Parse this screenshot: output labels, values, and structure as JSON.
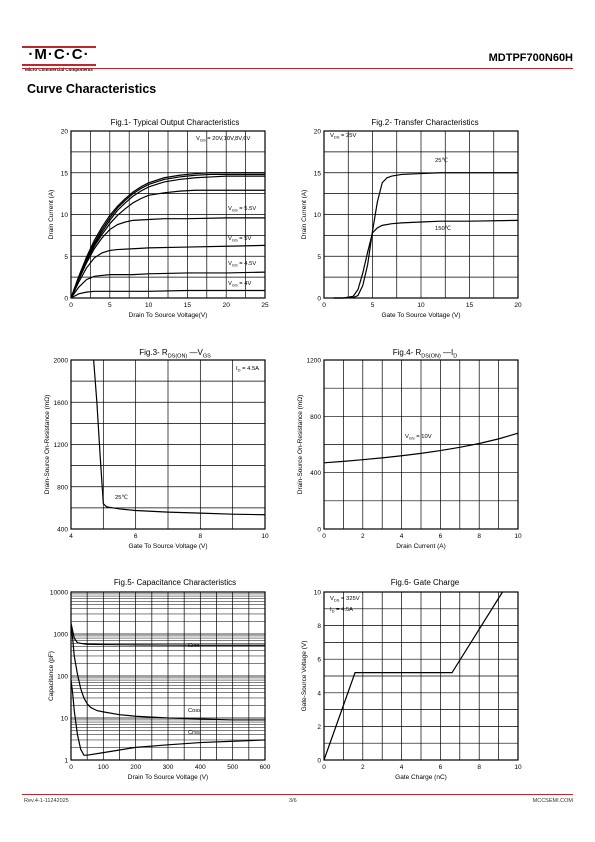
{
  "header": {
    "logo_text": "·M·C·C·",
    "logo_subtitle": "Micro Commercial Components",
    "part_number": "MDTPF700N60H",
    "brand_color": "#c0262e"
  },
  "section_title": "Curve Characteristics",
  "footer": {
    "revision": "Rev.4-1-11242025",
    "page": "3/6",
    "website": "MCCSEMI.COM"
  },
  "chart_data": [
    {
      "id": "fig1",
      "type": "line",
      "title": "Fig.1- Typical Output Characteristics",
      "xlabel": "Drain To Source Voltage(V)",
      "ylabel": "Drain Current (A)",
      "xlim": [
        0,
        25
      ],
      "ylim": [
        0,
        20
      ],
      "xticks": [
        "0",
        "5",
        "10",
        "15",
        "20",
        "25"
      ],
      "yticks": [
        "0",
        "5",
        "10",
        "15",
        "20"
      ],
      "grid": true,
      "annotations": [
        "VGS = 20V,10V,8V,6V",
        "VGS = 5.5V",
        "VGS = 5V",
        "VGS = 4.5V",
        "VGS = 4V"
      ],
      "series": [
        {
          "x": [
            0,
            1,
            2,
            3,
            4,
            5,
            6,
            7,
            8,
            9,
            10,
            12,
            14,
            16,
            18,
            20,
            22,
            25
          ],
          "y": [
            0,
            2.6,
            4.9,
            6.9,
            8.5,
            9.9,
            11.0,
            11.9,
            12.7,
            13.3,
            13.8,
            14.4,
            14.7,
            14.9,
            15.0,
            15.0,
            15.0,
            15.0
          ]
        },
        {
          "x": [
            0,
            1,
            2,
            3,
            4,
            5,
            6,
            7,
            8,
            9,
            10,
            12,
            14,
            16,
            18,
            20,
            22,
            25
          ],
          "y": [
            0,
            2.5,
            4.7,
            6.6,
            8.2,
            9.6,
            10.8,
            11.7,
            12.5,
            13.1,
            13.6,
            14.2,
            14.5,
            14.7,
            14.8,
            14.8,
            14.8,
            14.8
          ]
        },
        {
          "x": [
            0,
            1,
            2,
            3,
            4,
            5,
            6,
            7,
            8,
            9,
            10,
            12,
            14,
            16,
            18,
            20,
            22,
            25
          ],
          "y": [
            0,
            2.4,
            4.6,
            6.4,
            7.9,
            9.3,
            10.5,
            11.4,
            12.2,
            12.8,
            13.3,
            13.9,
            14.2,
            14.4,
            14.5,
            14.6,
            14.6,
            14.6
          ]
        },
        {
          "x": [
            0,
            1,
            2,
            3,
            4,
            5,
            6,
            7,
            8,
            9,
            10,
            12,
            14,
            16,
            18,
            20,
            22,
            25
          ],
          "y": [
            0,
            2.3,
            4.4,
            6.2,
            7.6,
            8.9,
            9.9,
            10.7,
            11.4,
            11.9,
            12.3,
            12.6,
            12.8,
            12.9,
            12.9,
            12.9,
            12.9,
            12.9
          ]
        },
        {
          "name": "VGS = 5.5V",
          "x": [
            0,
            1,
            2,
            3,
            4,
            5,
            6,
            7,
            8,
            10,
            12,
            15,
            20,
            25
          ],
          "y": [
            0,
            2.2,
            4.2,
            5.9,
            7.2,
            8.2,
            8.8,
            9.1,
            9.3,
            9.4,
            9.5,
            9.5,
            9.6,
            9.6
          ]
        },
        {
          "name": "VGS = 5V",
          "x": [
            0,
            1,
            2,
            3,
            4,
            5,
            6,
            8,
            10,
            15,
            20,
            25
          ],
          "y": [
            0,
            1.9,
            3.6,
            4.8,
            5.4,
            5.7,
            5.8,
            5.9,
            6.0,
            6.1,
            6.2,
            6.3
          ]
        },
        {
          "name": "VGS = 4.5V",
          "x": [
            0,
            1,
            2,
            3,
            4,
            5,
            6,
            8,
            10,
            15,
            20,
            25
          ],
          "y": [
            0,
            1.3,
            2.2,
            2.6,
            2.7,
            2.8,
            2.8,
            2.8,
            2.9,
            3.0,
            3.0,
            3.1
          ]
        },
        {
          "name": "VGS = 4V",
          "x": [
            0,
            1,
            2,
            3,
            4,
            5,
            8,
            10,
            15,
            20,
            25
          ],
          "y": [
            0,
            0.5,
            0.7,
            0.8,
            0.8,
            0.8,
            0.8,
            0.8,
            0.9,
            0.9,
            0.9
          ]
        }
      ]
    },
    {
      "id": "fig2",
      "type": "line",
      "title": "Fig.2- Transfer Characteristics",
      "xlabel": "Gate To Source Voltage (V)",
      "ylabel": "Drain Current (A)",
      "xlim": [
        0,
        20
      ],
      "ylim": [
        0,
        20
      ],
      "xticks": [
        "0",
        "5",
        "10",
        "15",
        "20"
      ],
      "yticks": [
        "0",
        "5",
        "10",
        "15",
        "20"
      ],
      "grid": true,
      "annotations": [
        "VDS = 25V",
        "25℃",
        "150℃"
      ],
      "series": [
        {
          "name": "25℃",
          "x": [
            1,
            2,
            3,
            3.5,
            4,
            4.5,
            5,
            5.5,
            6,
            6.5,
            7,
            8,
            10,
            12,
            15,
            20
          ],
          "y": [
            0,
            0,
            0.05,
            0.3,
            1.5,
            4,
            8,
            11.5,
            13.8,
            14.4,
            14.6,
            14.8,
            14.9,
            15.0,
            15.0,
            15.0
          ]
        },
        {
          "name": "150℃",
          "x": [
            1,
            2,
            3,
            3.5,
            4,
            4.5,
            5,
            5.5,
            6,
            7,
            8,
            10,
            12,
            15,
            20
          ],
          "y": [
            0,
            0,
            0.2,
            1,
            3,
            5.5,
            7.8,
            8.4,
            8.7,
            8.9,
            9.0,
            9.1,
            9.2,
            9.2,
            9.3
          ]
        }
      ]
    },
    {
      "id": "fig3",
      "type": "line",
      "title_main": "Fig.3- R",
      "title_sub": "DS(ON)",
      "title_dash": " —V",
      "title_sub2": "GS",
      "xlabel": "Gate To Source Voltage (V)",
      "ylabel": "Drain-Source On-Resistance (mΩ)",
      "xlim": [
        4,
        10
      ],
      "ylim": [
        400,
        2000
      ],
      "xticks": [
        "4",
        "6",
        "8",
        "10"
      ],
      "yticks": [
        "400",
        "800",
        "1200",
        "1600",
        "2000"
      ],
      "grid": true,
      "annotations": [
        "ID = 4.5A",
        "25℃"
      ],
      "series": [
        {
          "name": "25℃",
          "x": [
            4.7,
            4.8,
            4.9,
            5.0,
            5.1,
            5.5,
            6,
            7,
            8,
            9,
            10
          ],
          "y": [
            2000,
            1600,
            1100,
            640,
            610,
            590,
            575,
            560,
            550,
            540,
            535
          ]
        }
      ]
    },
    {
      "id": "fig4",
      "type": "line",
      "title_main": "Fig.4- R",
      "title_sub": "DS(ON)",
      "title_dash": " —I",
      "title_sub2": "D",
      "xlabel": "Drain Current  (A)",
      "ylabel": "Drain-Source On-Resistance  (mΩ)",
      "xlim": [
        0,
        10
      ],
      "ylim": [
        0,
        1200
      ],
      "xticks": [
        "0",
        "2",
        "4",
        "6",
        "8",
        "10"
      ],
      "yticks": [
        "0",
        "400",
        "800",
        "1200"
      ],
      "grid": true,
      "annotations": [
        "VGS = 10V"
      ],
      "series": [
        {
          "name": "VGS = 10V",
          "x": [
            0,
            1,
            2,
            3,
            4,
            5,
            6,
            7,
            8,
            9,
            10
          ],
          "y": [
            470,
            480,
            492,
            505,
            520,
            537,
            557,
            580,
            607,
            640,
            680
          ]
        }
      ]
    },
    {
      "id": "fig5",
      "type": "line",
      "title": "Fig.5- Capacitance Characteristics",
      "xlabel": "Drain To Source Voltage  (V)",
      "ylabel": "Capacitance (pF)",
      "xlim": [
        0,
        600
      ],
      "ylim": [
        1,
        10000
      ],
      "yscale": "log",
      "xticks": [
        "0",
        "100",
        "200",
        "300",
        "400",
        "500",
        "600"
      ],
      "yticks": [
        "1",
        "10",
        "100",
        "1000",
        "10000"
      ],
      "grid": true,
      "series": [
        {
          "name": "Ciss",
          "x": [
            0,
            5,
            10,
            20,
            30,
            40,
            50,
            100,
            200,
            300,
            400,
            500,
            600
          ],
          "y": [
            1800,
            1200,
            800,
            620,
            600,
            580,
            570,
            560,
            550,
            545,
            540,
            540,
            540
          ]
        },
        {
          "name": "Coss",
          "x": [
            0,
            5,
            10,
            20,
            30,
            40,
            50,
            60,
            80,
            100,
            150,
            200,
            300,
            400,
            500,
            600
          ],
          "y": [
            1500,
            800,
            300,
            110,
            50,
            30,
            22,
            18,
            15,
            14,
            12,
            11,
            10,
            9.5,
            9,
            9
          ]
        },
        {
          "name": "Crss",
          "x": [
            0,
            5,
            10,
            20,
            30,
            40,
            50,
            100,
            200,
            300,
            400,
            500,
            600
          ],
          "y": [
            80,
            40,
            15,
            4,
            1.8,
            1.3,
            1.3,
            1.5,
            2,
            2.3,
            2.6,
            2.8,
            3
          ]
        }
      ]
    },
    {
      "id": "fig6",
      "type": "line",
      "title": "Fig.6- Gate Charge",
      "xlabel": "Gate Charge (nC)",
      "ylabel": "Gate-Source Voltage  (V)",
      "xlim": [
        0,
        10
      ],
      "ylim": [
        0,
        10
      ],
      "xticks": [
        "0",
        "2",
        "4",
        "6",
        "8",
        "10"
      ],
      "yticks": [
        "0",
        "2",
        "4",
        "6",
        "8",
        "10"
      ],
      "grid": true,
      "annotations": [
        "VDS = 325V",
        "ID = 4.5A"
      ],
      "series": [
        {
          "x": [
            0,
            1.6,
            6.6,
            9.2
          ],
          "y": [
            0,
            5.2,
            5.2,
            10
          ]
        }
      ]
    }
  ]
}
